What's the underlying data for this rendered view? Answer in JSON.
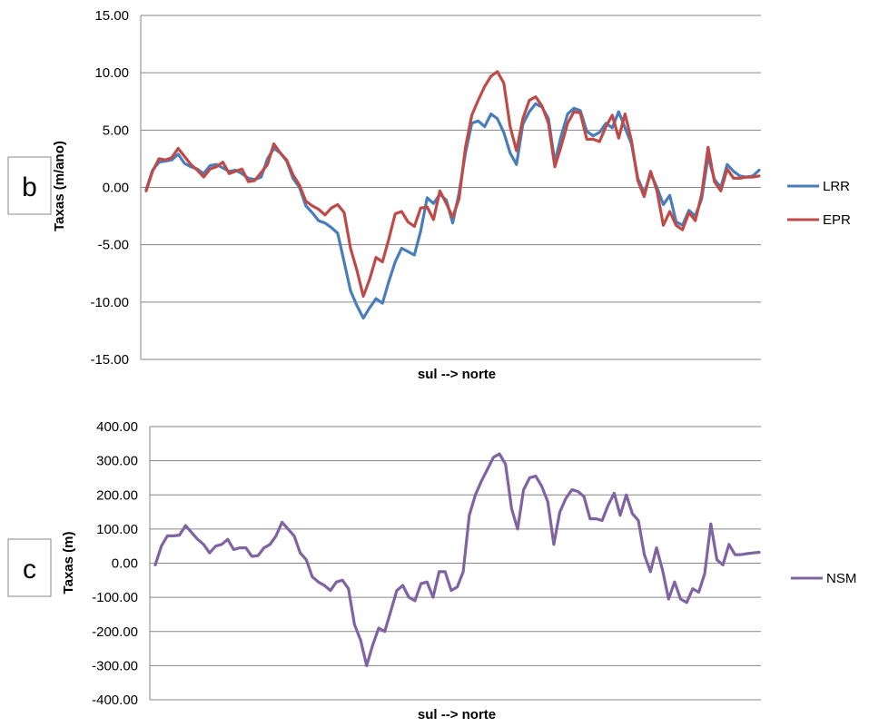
{
  "chart_data": [
    {
      "panel_label": "b",
      "type": "line",
      "xlabel": "sul --> norte",
      "ylabel": "Taxas (m/ano)",
      "ylim": [
        -15,
        15
      ],
      "yticks": [
        "15.00",
        "10.00",
        "5.00",
        "0.00",
        "-5.00",
        "-10.00",
        "-15.00"
      ],
      "grid": true,
      "legend_position": "right",
      "series": [
        {
          "name": "LRR",
          "color": "#4a7ebb",
          "values": [
            -0.2,
            1.5,
            2.2,
            2.3,
            2.4,
            2.9,
            2.1,
            1.8,
            1.6,
            1.2,
            1.9,
            2.0,
            1.7,
            1.4,
            1.5,
            1.2,
            0.8,
            0.7,
            0.9,
            2.5,
            3.4,
            3.0,
            2.3,
            0.8,
            0.0,
            -1.6,
            -2.2,
            -2.9,
            -3.1,
            -3.5,
            -4.0,
            -6.5,
            -9.0,
            -10.3,
            -11.4,
            -10.5,
            -9.7,
            -10.1,
            -8.2,
            -6.5,
            -5.3,
            -5.6,
            -5.9,
            -3.8,
            -0.9,
            -1.4,
            -0.6,
            -1.1,
            -3.1,
            -0.5,
            3.0,
            5.6,
            5.8,
            5.3,
            6.4,
            6.0,
            4.8,
            3.0,
            2.0,
            5.5,
            6.6,
            7.3,
            7.0,
            6.0,
            2.2,
            4.5,
            6.4,
            6.9,
            6.7,
            4.9,
            4.5,
            4.8,
            5.6,
            5.2,
            6.6,
            5.2,
            3.8,
            0.8,
            -0.5,
            1.2,
            0.0,
            -1.5,
            -0.7,
            -3.0,
            -3.3,
            -2.0,
            -2.5,
            -1.0,
            2.7,
            0.7,
            0.0,
            2.0,
            1.4,
            1.0,
            0.9,
            1.0,
            1.5
          ]
        },
        {
          "name": "EPR",
          "color": "#be4b48",
          "values": [
            -0.3,
            1.4,
            2.5,
            2.4,
            2.6,
            3.4,
            2.7,
            2.0,
            1.5,
            0.9,
            1.6,
            1.8,
            2.2,
            1.2,
            1.4,
            1.6,
            0.5,
            0.6,
            1.3,
            2.0,
            3.8,
            3.0,
            2.4,
            1.1,
            0.2,
            -1.2,
            -1.6,
            -1.9,
            -2.4,
            -1.8,
            -1.5,
            -2.2,
            -5.3,
            -7.2,
            -9.5,
            -8.0,
            -6.1,
            -6.5,
            -4.5,
            -2.3,
            -2.1,
            -3.0,
            -3.4,
            -1.8,
            -1.7,
            -2.8,
            -0.3,
            -1.4,
            -2.6,
            -1.0,
            3.5,
            6.3,
            7.6,
            8.8,
            9.7,
            10.1,
            9.1,
            5.3,
            3.2,
            6.0,
            7.6,
            7.9,
            7.1,
            5.6,
            1.8,
            3.6,
            5.6,
            6.6,
            6.5,
            4.2,
            4.2,
            4.0,
            5.3,
            6.3,
            4.3,
            6.4,
            4.1,
            0.6,
            -0.8,
            1.4,
            -0.3,
            -3.3,
            -2.1,
            -3.3,
            -3.7,
            -2.2,
            -2.9,
            -0.6,
            3.5,
            0.5,
            -0.3,
            1.6,
            0.8,
            0.8,
            0.9,
            0.9,
            1.0
          ]
        }
      ]
    },
    {
      "panel_label": "c",
      "type": "line",
      "xlabel": "sul --> norte",
      "ylabel": "Taxas (m)",
      "ylim": [
        -400,
        400
      ],
      "yticks": [
        "400.00",
        "300.00",
        "200.00",
        "100.00",
        "0.00",
        "-100.00",
        "-200.00",
        "-300.00",
        "-400.00"
      ],
      "grid": true,
      "legend_position": "right",
      "series": [
        {
          "name": "NSM",
          "color": "#7f63a2",
          "values": [
            -5,
            50,
            80,
            80,
            82,
            110,
            90,
            70,
            55,
            30,
            50,
            55,
            70,
            40,
            45,
            45,
            20,
            22,
            45,
            55,
            80,
            120,
            100,
            80,
            30,
            10,
            -40,
            -55,
            -65,
            -80,
            -55,
            -50,
            -75,
            -180,
            -225,
            -300,
            -240,
            -190,
            -200,
            -140,
            -80,
            -65,
            -100,
            -110,
            -60,
            -55,
            -100,
            -25,
            -25,
            -80,
            -70,
            -25,
            140,
            200,
            240,
            275,
            310,
            320,
            290,
            160,
            100,
            215,
            250,
            255,
            225,
            180,
            55,
            150,
            190,
            215,
            210,
            195,
            130,
            130,
            125,
            170,
            205,
            140,
            200,
            145,
            125,
            25,
            -25,
            45,
            -20,
            -105,
            -55,
            -105,
            -115,
            -75,
            -85,
            -30,
            115,
            10,
            -5,
            55,
            25,
            25,
            28,
            30,
            32
          ]
        }
      ]
    }
  ]
}
